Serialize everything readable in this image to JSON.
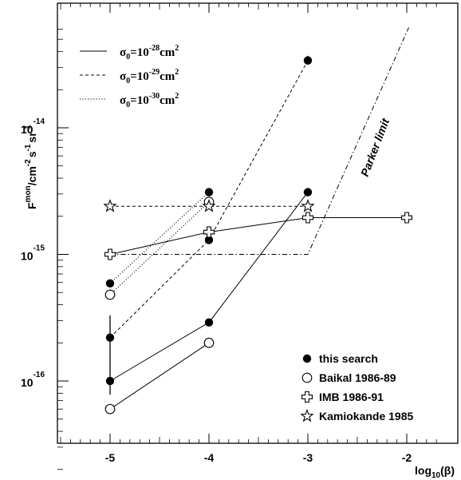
{
  "chart_data": {
    "type": "scatter",
    "x_axis": {
      "label_base": "log",
      "label_sub": "10",
      "label_tail": "(β)",
      "ticks": [
        -5,
        -4,
        -3,
        -2
      ],
      "tick_labels": [
        "-5",
        "-4",
        "-3",
        "-2"
      ],
      "range": [
        -5.9,
        -1.7
      ]
    },
    "y_axis": {
      "label": "F^mon/cm^-2 s^-1 sr^-1",
      "scale": "log",
      "range": [
        1.3e-17,
        6.2e-14
      ],
      "ticks": [
        1e-16,
        1e-15,
        1e-14
      ],
      "tick_bases": [
        "10",
        "10",
        "10"
      ],
      "tick_exponents": [
        "-16",
        "-15",
        "-14"
      ]
    },
    "cross_section_legend": [
      {
        "style": "solid",
        "prefix": "σ",
        "sub": "0",
        "mid": "=10",
        "exp": "-28",
        "unit": "cm",
        "unit_exp": "2"
      },
      {
        "style": "dashed",
        "prefix": "σ",
        "sub": "0",
        "mid": "=10",
        "exp": "-29",
        "unit": "cm",
        "unit_exp": "2"
      },
      {
        "style": "dotted",
        "prefix": "σ",
        "sub": "0",
        "mid": "=10",
        "exp": "-30",
        "unit": "cm",
        "unit_exp": "2"
      }
    ],
    "experiments_legend": [
      {
        "marker": "filled-circle",
        "label": "this search"
      },
      {
        "marker": "open-circle",
        "label": "Baikal 1986-89"
      },
      {
        "marker": "open-cross",
        "label": "IMB 1986-91"
      },
      {
        "marker": "open-star",
        "label": "Kamiokande 1985"
      }
    ],
    "series": [
      {
        "marker": "filled-circle",
        "line": "solid",
        "points": [
          [
            -5,
            1e-16
          ],
          [
            -4,
            2.9e-16
          ],
          [
            -3,
            3.1e-15
          ]
        ]
      },
      {
        "marker": "filled-circle",
        "line": "dashed",
        "points": [
          [
            -5,
            2.2e-16
          ],
          [
            -4,
            1.3e-15
          ],
          [
            -3,
            3.4e-14
          ]
        ]
      },
      {
        "marker": "filled-circle",
        "line": "dotted",
        "points": [
          [
            -5,
            5.9e-16
          ],
          [
            -4,
            3.1e-15
          ]
        ]
      },
      {
        "marker": "open-circle",
        "line": "solid",
        "points": [
          [
            -5,
            6e-17
          ],
          [
            -4,
            2e-16
          ]
        ]
      },
      {
        "marker": "open-circle",
        "line": "dotted",
        "points": [
          [
            -5,
            4.8e-16
          ],
          [
            -4,
            2.6e-15
          ]
        ]
      },
      {
        "marker": "open-cross",
        "line": "solid",
        "points": [
          [
            -5,
            1e-15
          ],
          [
            -4,
            1.5e-15
          ],
          [
            -3,
            1.95e-15
          ],
          [
            -2,
            1.95e-15
          ]
        ]
      },
      {
        "marker": "open-star",
        "line": "dashed",
        "points": [
          [
            -5,
            2.4e-15
          ],
          [
            -4,
            2.4e-15
          ],
          [
            -3,
            2.4e-15
          ]
        ]
      }
    ],
    "error_bars": [
      {
        "x": -5,
        "low": 7.8e-17,
        "high": 3.3e-16
      },
      {
        "x": -3,
        "low": 3.2e-14,
        "high": 3.7e-14
      }
    ],
    "extra_lines": [
      {
        "style": "dashdot",
        "points": [
          [
            -5,
            1e-15
          ],
          [
            -3,
            1e-15
          ],
          [
            -1.98,
            6.2e-14
          ]
        ]
      }
    ],
    "annotations": [
      {
        "text": "Parker limit"
      }
    ]
  }
}
